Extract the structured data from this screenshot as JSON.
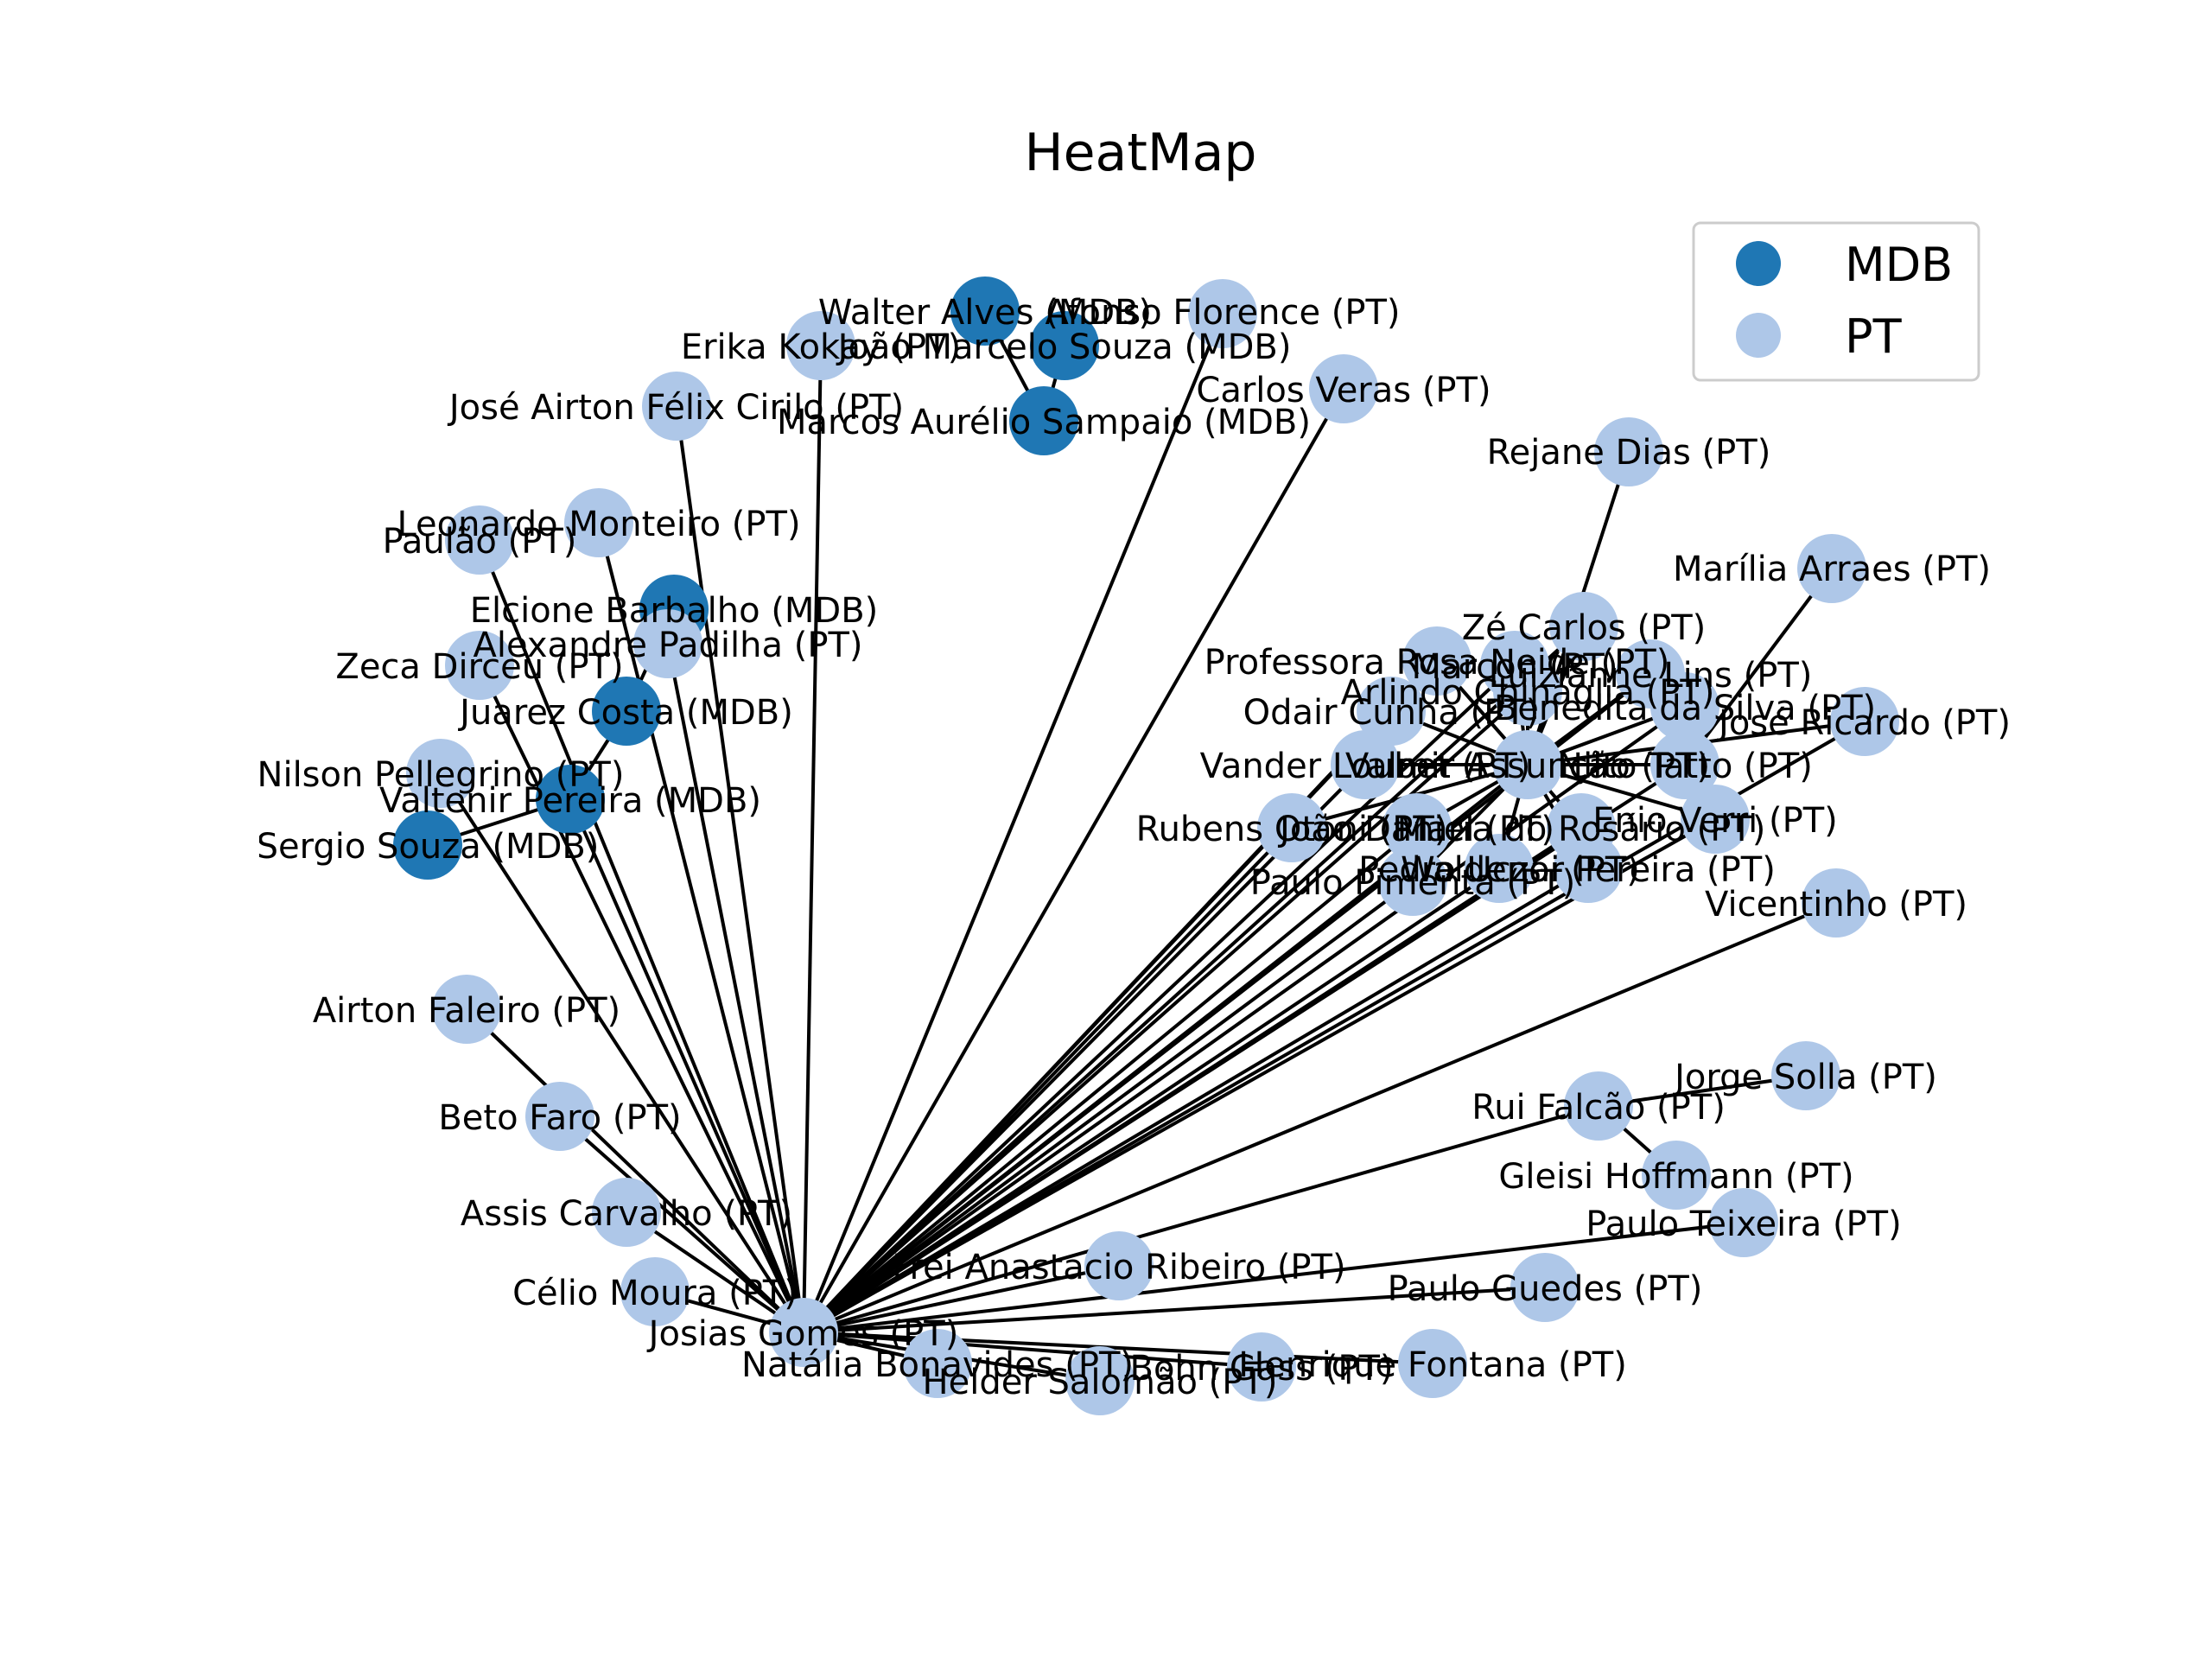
{
  "title": "HeatMap",
  "colors": {
    "MDB": "#1f77b4",
    "PT": "#aec7e8",
    "edge": "#000000"
  },
  "legend": [
    {
      "party": "MDB",
      "label": "MDB"
    },
    {
      "party": "PT",
      "label": "PT"
    }
  ],
  "hub": "josias",
  "nodes": [
    {
      "id": "walter",
      "label": "Walter Alves (MDB)",
      "party": "MDB"
    },
    {
      "id": "afonso",
      "label": "Afonso Florence (PT)",
      "party": "PT"
    },
    {
      "id": "erika",
      "label": "Erika Kokay (PT)",
      "party": "PT"
    },
    {
      "id": "joaom",
      "label": "João Marcelo Souza (MDB)",
      "party": "MDB"
    },
    {
      "id": "carlosv",
      "label": "Carlos Veras (PT)",
      "party": "PT"
    },
    {
      "id": "jose",
      "label": "José Airton Félix Cirilo (PT)",
      "party": "PT"
    },
    {
      "id": "marcos",
      "label": "Marcos Aurélio Sampaio (MDB)",
      "party": "MDB"
    },
    {
      "id": "rejane",
      "label": "Rejane Dias (PT)",
      "party": "PT"
    },
    {
      "id": "leonardo",
      "label": "Leonardo Monteiro (PT)",
      "party": "PT"
    },
    {
      "id": "paulao",
      "label": "Paulão (PT)",
      "party": "PT"
    },
    {
      "id": "marilia",
      "label": "Marília Arraes (PT)",
      "party": "PT"
    },
    {
      "id": "elcione",
      "label": "Elcione Barbalho (MDB)",
      "party": "MDB"
    },
    {
      "id": "ze",
      "label": "Zé Carlos (PT)",
      "party": "PT"
    },
    {
      "id": "alexandre",
      "label": "Alexandre Padilha (PT)",
      "party": "PT"
    },
    {
      "id": "professora",
      "label": "Professora Rosa Neide (PT)",
      "party": "PT"
    },
    {
      "id": "zeca",
      "label": "Zeca Dirceu (PT)",
      "party": "PT"
    },
    {
      "id": "marcon",
      "label": "Marcon (PT)",
      "party": "PT"
    },
    {
      "id": "luizianne",
      "label": "Luizianne Lins (PT)",
      "party": "PT"
    },
    {
      "id": "arlindo",
      "label": "Arlindo Chinaglia (PT)",
      "party": "PT"
    },
    {
      "id": "benedita",
      "label": "Benedita da Silva (PT)",
      "party": "PT"
    },
    {
      "id": "juarez",
      "label": "Juarez Costa (MDB)",
      "party": "MDB"
    },
    {
      "id": "odair",
      "label": "Odair Cunha (PT)",
      "party": "PT"
    },
    {
      "id": "josericardo",
      "label": "José Ricardo (PT)",
      "party": "PT"
    },
    {
      "id": "nilson",
      "label": "Nilson Pellegrino (PT)",
      "party": "PT"
    },
    {
      "id": "vander",
      "label": "Vander Loubet (PT)",
      "party": "PT"
    },
    {
      "id": "valmir",
      "label": "Valmir Assunção (PT)",
      "party": "PT"
    },
    {
      "id": "nilto",
      "label": "Nilto Tatto (PT)",
      "party": "PT"
    },
    {
      "id": "valtenir",
      "label": "Valtenir Pereira (MDB)",
      "party": "MDB"
    },
    {
      "id": "sergio",
      "label": "Sergio Souza (MDB)",
      "party": "MDB"
    },
    {
      "id": "rubens",
      "label": "Rubens Otoni (PT)",
      "party": "PT"
    },
    {
      "id": "joaod",
      "label": "João Daniel (PT)",
      "party": "PT"
    },
    {
      "id": "maria",
      "label": "Maria do Rosário (PT)",
      "party": "PT"
    },
    {
      "id": "enio",
      "label": "Enio Verri (PT)",
      "party": "PT"
    },
    {
      "id": "paulop",
      "label": "Paulo Pimenta (PT)",
      "party": "PT"
    },
    {
      "id": "waldenor",
      "label": "Waldenor Pereira (PT)",
      "party": "PT"
    },
    {
      "id": "pedro",
      "label": "Pedro Uczai (PT)",
      "party": "PT"
    },
    {
      "id": "vicentinho",
      "label": "Vicentinho (PT)",
      "party": "PT"
    },
    {
      "id": "airton",
      "label": "Airton Faleiro (PT)",
      "party": "PT"
    },
    {
      "id": "jorge",
      "label": "Jorge Solla (PT)",
      "party": "PT"
    },
    {
      "id": "rui",
      "label": "Rui Falcão (PT)",
      "party": "PT"
    },
    {
      "id": "beto",
      "label": "Beto Faro (PT)",
      "party": "PT"
    },
    {
      "id": "gleisi",
      "label": "Gleisi Hoffmann (PT)",
      "party": "PT"
    },
    {
      "id": "assis",
      "label": "Assis Carvalho (PT)",
      "party": "PT"
    },
    {
      "id": "paulot",
      "label": "Paulo Teixeira (PT)",
      "party": "PT"
    },
    {
      "id": "frei",
      "label": "Frei Anastacio Ribeiro (PT)",
      "party": "PT"
    },
    {
      "id": "celio",
      "label": "Célio Moura (PT)",
      "party": "PT"
    },
    {
      "id": "paulog",
      "label": "Paulo Guedes (PT)",
      "party": "PT"
    },
    {
      "id": "josias",
      "label": "Josias Gomes (PT)",
      "party": "PT"
    },
    {
      "id": "natalia",
      "label": "Natália Bonavides (PT)",
      "party": "PT"
    },
    {
      "id": "helder",
      "label": "Helder Salomão (PT)",
      "party": "PT"
    },
    {
      "id": "bohn",
      "label": "Bohn Gass (PT)",
      "party": "PT"
    },
    {
      "id": "henrique",
      "label": "Henrique Fontana (PT)",
      "party": "PT"
    }
  ],
  "edges": [
    [
      "walter",
      "marcos"
    ],
    [
      "joaom",
      "marcos"
    ],
    [
      "elcione",
      "juarez"
    ],
    [
      "juarez",
      "valtenir"
    ],
    [
      "valtenir",
      "sergio"
    ],
    [
      "rejane",
      "valmir"
    ],
    [
      "marilia",
      "nilto"
    ],
    [
      "jorge",
      "rui"
    ],
    [
      "rui",
      "gleisi"
    ],
    [
      "josias",
      "erika"
    ],
    [
      "josias",
      "afonso"
    ],
    [
      "josias",
      "carlosv"
    ],
    [
      "josias",
      "jose"
    ],
    [
      "josias",
      "leonardo"
    ],
    [
      "josias",
      "paulao"
    ],
    [
      "josias",
      "alexandre"
    ],
    [
      "josias",
      "zeca"
    ],
    [
      "josias",
      "nilson"
    ],
    [
      "josias",
      "valtenir"
    ],
    [
      "josias",
      "airton"
    ],
    [
      "josias",
      "beto"
    ],
    [
      "josias",
      "assis"
    ],
    [
      "josias",
      "celio"
    ],
    [
      "josias",
      "natalia"
    ],
    [
      "josias",
      "helder"
    ],
    [
      "josias",
      "bohn"
    ],
    [
      "josias",
      "henrique"
    ],
    [
      "josias",
      "frei"
    ],
    [
      "josias",
      "paulog"
    ],
    [
      "josias",
      "paulot"
    ],
    [
      "josias",
      "rui"
    ],
    [
      "josias",
      "vicentinho"
    ],
    [
      "josias",
      "rubens"
    ],
    [
      "josias",
      "joaod"
    ],
    [
      "josias",
      "maria"
    ],
    [
      "josias",
      "enio"
    ],
    [
      "josias",
      "paulop"
    ],
    [
      "josias",
      "waldenor"
    ],
    [
      "josias",
      "pedro"
    ],
    [
      "josias",
      "vander"
    ],
    [
      "josias",
      "valmir"
    ],
    [
      "josias",
      "nilto"
    ],
    [
      "josias",
      "odair"
    ],
    [
      "josias",
      "josericardo"
    ],
    [
      "josias",
      "benedita"
    ],
    [
      "josias",
      "arlindo"
    ],
    [
      "josias",
      "luizianne"
    ],
    [
      "josias",
      "marcon"
    ],
    [
      "josias",
      "ze"
    ],
    [
      "josias",
      "professora"
    ],
    [
      "valmir",
      "professora"
    ],
    [
      "valmir",
      "ze"
    ],
    [
      "valmir",
      "marcon"
    ],
    [
      "valmir",
      "luizianne"
    ],
    [
      "valmir",
      "arlindo"
    ],
    [
      "valmir",
      "benedita"
    ],
    [
      "valmir",
      "josericardo"
    ],
    [
      "valmir",
      "odair"
    ],
    [
      "valmir",
      "vander"
    ],
    [
      "valmir",
      "nilto"
    ],
    [
      "valmir",
      "maria"
    ],
    [
      "valmir",
      "enio"
    ],
    [
      "valmir",
      "joaod"
    ],
    [
      "valmir",
      "rubens"
    ],
    [
      "valmir",
      "waldenor"
    ],
    [
      "valmir",
      "pedro"
    ],
    [
      "valmir",
      "paulop"
    ]
  ]
}
